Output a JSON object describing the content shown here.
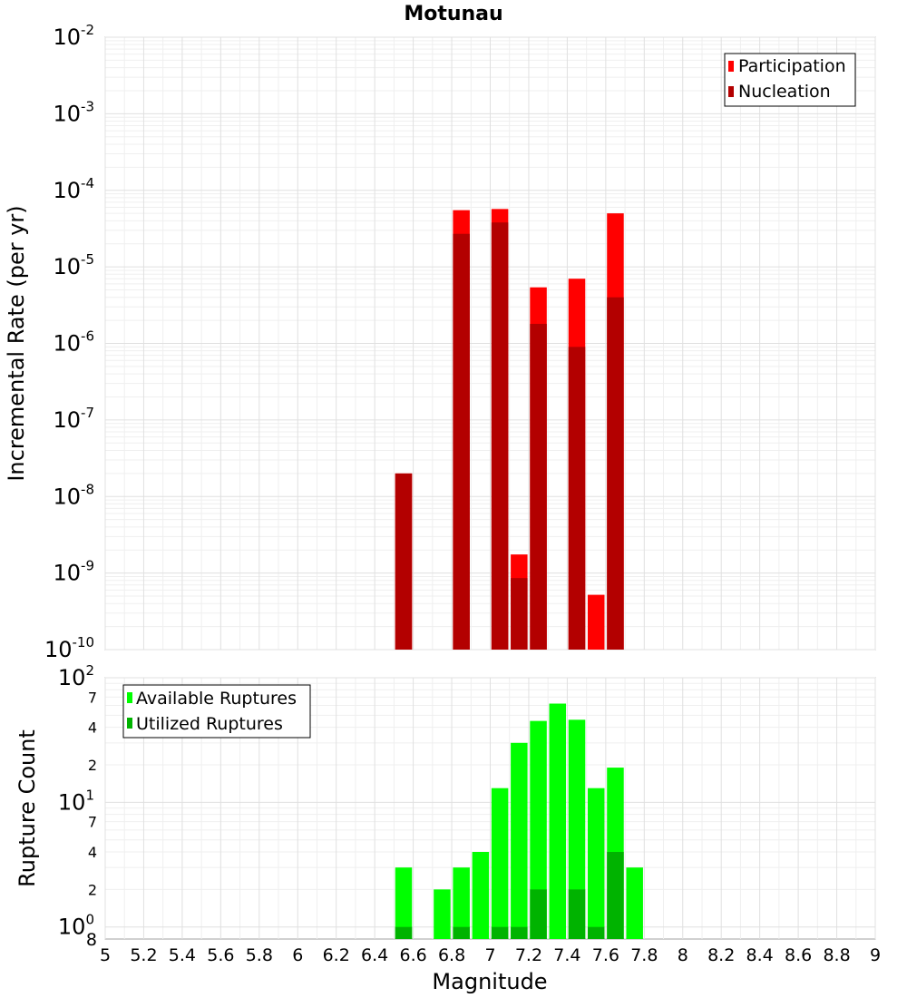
{
  "chart_data": [
    {
      "type": "bar",
      "title": "Motunau",
      "ylabel": "Incremental Rate (per yr)",
      "xlabel": "",
      "yscale": "log",
      "xlim": [
        5,
        9
      ],
      "ylim": [
        1e-10,
        0.01
      ],
      "y_tick_exponents": [
        "-10",
        "-9",
        "-8",
        "-7",
        "-6",
        "-5",
        "-4",
        "-3",
        "-2"
      ],
      "y_tick_base": "10",
      "grid": true,
      "legend_position": "top-right",
      "x": [
        6.55,
        6.85,
        7.05,
        7.15,
        7.25,
        7.45,
        7.55,
        7.65
      ],
      "series": [
        {
          "name": "Participation",
          "color": "#ff0000",
          "values": [
            2e-08,
            5.5e-05,
            5.7e-05,
            1.75e-09,
            5.4e-06,
            7e-06,
            5.2e-10,
            5e-05
          ]
        },
        {
          "name": "Nucleation",
          "color": "#b30000",
          "values": [
            2e-08,
            2.7e-05,
            3.8e-05,
            8.6e-10,
            1.8e-06,
            9e-07,
            null,
            4e-06
          ]
        }
      ]
    },
    {
      "type": "bar",
      "title": "",
      "ylabel": "Rupture Count",
      "xlabel": "Magnitude",
      "yscale": "log",
      "xlim": [
        5,
        9
      ],
      "ylim": [
        0.8,
        100
      ],
      "x_ticks": [
        "5",
        "5.2",
        "5.4",
        "5.6",
        "5.8",
        "6",
        "6.2",
        "6.4",
        "6.6",
        "6.8",
        "7",
        "7.2",
        "7.4",
        "7.6",
        "7.8",
        "8",
        "8.2",
        "8.4",
        "8.6",
        "8.8",
        "9"
      ],
      "y_tick_base": "10",
      "y_tick_exponents": [
        "0",
        "1",
        "2"
      ],
      "y_minor_labels": [
        "2",
        "4",
        "7",
        "2",
        "4",
        "7"
      ],
      "y_bottom_label": "8",
      "grid": true,
      "legend_position": "top-left",
      "x": [
        6.55,
        6.75,
        6.85,
        6.95,
        7.05,
        7.15,
        7.25,
        7.35,
        7.45,
        7.55,
        7.65,
        7.75
      ],
      "series": [
        {
          "name": "Available Ruptures",
          "color": "#00ff00",
          "values": [
            3,
            2,
            3,
            4,
            13,
            30,
            45,
            62,
            46,
            13,
            19,
            3
          ]
        },
        {
          "name": "Utilized Ruptures",
          "color": "#00b300",
          "values": [
            1,
            null,
            1,
            null,
            1,
            1,
            2,
            null,
            2,
            1,
            4,
            null
          ]
        }
      ]
    }
  ]
}
